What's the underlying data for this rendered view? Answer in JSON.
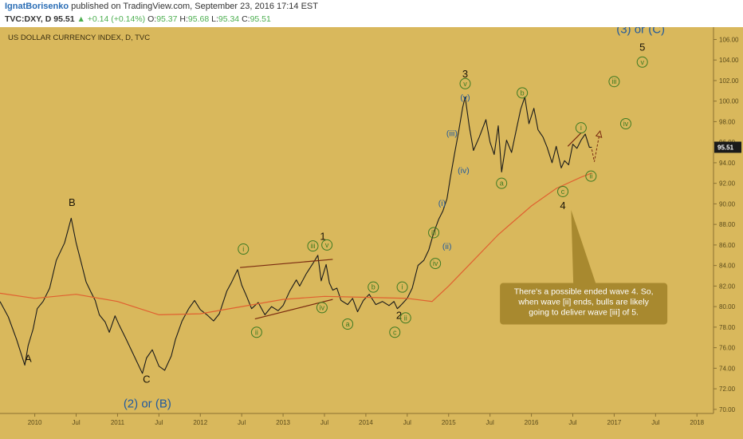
{
  "header": {
    "author": "IgnatBorisenko",
    "published": "published on TradingView.com, September 23, 2016 17:14 EST",
    "symbol": "TVC:DXY, D",
    "price": "95.51",
    "change": "+0.14 (+0.14%)",
    "o_label": "O:",
    "o_value": "95.37",
    "h_label": "H:",
    "h_value": "95.68",
    "l_label": "L:",
    "l_value": "95.34",
    "c_label": "C:",
    "c_value": "95.51"
  },
  "colors": {
    "background": "#d9b85c",
    "price_line": "#1a1a1a",
    "moving_average": "#e06030",
    "wave_green": "#3d7a22",
    "wave_blue": "#215a9e",
    "callout_bg": "#a8892f",
    "last_price_tag": "#1a1a1a"
  },
  "chart_data": {
    "type": "line",
    "title": "US DOLLAR CURRENCY INDEX, D, TVC",
    "y_ticks": [
      "70.00",
      "72.00",
      "74.00",
      "76.00",
      "78.00",
      "80.00",
      "82.00",
      "84.00",
      "86.00",
      "88.00",
      "90.00",
      "92.00",
      "94.00",
      "96.00",
      "98.00",
      "100.00",
      "102.00",
      "104.00",
      "106.00"
    ],
    "ylim": [
      69.6,
      107.2
    ],
    "x_ticks": [
      "2010",
      "Jul",
      "2011",
      "Jul",
      "2012",
      "Jul",
      "2013",
      "Jul",
      "2014",
      "Jul",
      "2015",
      "Jul",
      "2016",
      "Jul",
      "2017",
      "Jul",
      "2018"
    ],
    "x_tick_dates": [
      2010.0,
      2010.5,
      2011.0,
      2011.5,
      2012.0,
      2012.5,
      2013.0,
      2013.5,
      2014.0,
      2014.5,
      2015.0,
      2015.5,
      2016.0,
      2016.5,
      2017.0,
      2017.5,
      2018.0
    ],
    "xlim": [
      2009.58,
      2018.2
    ],
    "last_price": "95.51",
    "series": [
      {
        "kind": "price",
        "x": [
          2009.58,
          2009.68,
          2009.78,
          2009.88,
          2009.92,
          2009.98,
          2010.03,
          2010.1,
          2010.18,
          2010.26,
          2010.36,
          2010.44,
          2010.5,
          2010.56,
          2010.62,
          2010.68,
          2010.73,
          2010.78,
          2010.85,
          2010.9,
          2010.97,
          2011.02,
          2011.1,
          2011.2,
          2011.3,
          2011.35,
          2011.42,
          2011.5,
          2011.57,
          2011.65,
          2011.7,
          2011.78,
          2011.86,
          2011.93,
          2012.0,
          2012.08,
          2012.16,
          2012.23,
          2012.32,
          2012.38,
          2012.45,
          2012.5,
          2012.56,
          2012.62,
          2012.7,
          2012.78,
          2012.86,
          2012.94,
          2013.0,
          2013.08,
          2013.16,
          2013.2,
          2013.28,
          2013.36,
          2013.42,
          2013.46,
          2013.52,
          2013.56,
          2013.6,
          2013.65,
          2013.7,
          2013.78,
          2013.84,
          2013.9,
          2013.97,
          2014.04,
          2014.12,
          2014.2,
          2014.28,
          2014.34,
          2014.38,
          2014.42,
          2014.5,
          2014.56,
          2014.63,
          2014.7,
          2014.76,
          2014.82,
          2014.88,
          2014.93,
          2014.98,
          2015.02,
          2015.07,
          2015.12,
          2015.17,
          2015.2,
          2015.25,
          2015.3,
          2015.37,
          2015.45,
          2015.5,
          2015.55,
          2015.6,
          2015.64,
          2015.7,
          2015.76,
          2015.82,
          2015.87,
          2015.92,
          2015.97,
          2016.03,
          2016.08,
          2016.14,
          2016.19,
          2016.25,
          2016.3,
          2016.36,
          2016.4,
          2016.45,
          2016.5,
          2016.55,
          2016.6,
          2016.65,
          2016.7,
          2016.73
        ],
        "y": [
          80.5,
          79.0,
          76.8,
          74.3,
          76.2,
          77.8,
          79.8,
          80.5,
          81.8,
          84.5,
          86.2,
          88.6,
          86.2,
          84.3,
          82.4,
          81.4,
          80.6,
          79.2,
          78.5,
          77.5,
          79.1,
          78.2,
          76.9,
          75.2,
          73.5,
          75.0,
          75.8,
          74.2,
          73.8,
          75.2,
          76.8,
          78.6,
          79.8,
          80.6,
          79.7,
          79.2,
          78.6,
          79.3,
          81.5,
          82.4,
          83.6,
          82.1,
          81.0,
          79.8,
          80.4,
          79.2,
          80.0,
          79.6,
          80.1,
          81.5,
          82.6,
          82.0,
          83.2,
          84.2,
          85.0,
          82.5,
          84.1,
          82.3,
          81.6,
          81.8,
          80.6,
          80.2,
          80.8,
          79.5,
          80.6,
          81.2,
          80.2,
          80.5,
          80.1,
          80.5,
          79.8,
          80.1,
          80.8,
          81.8,
          84.0,
          84.5,
          85.5,
          87.2,
          88.5,
          89.3,
          90.5,
          92.5,
          94.8,
          97.0,
          99.4,
          100.4,
          97.5,
          95.2,
          96.5,
          98.2,
          96.0,
          94.8,
          97.6,
          93.1,
          96.2,
          95.0,
          97.3,
          99.2,
          100.4,
          97.8,
          99.3,
          97.2,
          96.5,
          95.5,
          94.0,
          95.6,
          93.5,
          94.2,
          93.8,
          95.8,
          95.4,
          96.2,
          96.8,
          95.5,
          95.51
        ]
      },
      {
        "kind": "moving-average",
        "x": [
          2009.58,
          2010.0,
          2010.5,
          2011.0,
          2011.5,
          2012.0,
          2012.5,
          2013.0,
          2013.5,
          2014.0,
          2014.5,
          2014.8,
          2015.0,
          2015.3,
          2015.6,
          2016.0,
          2016.3,
          2016.6,
          2016.73
        ],
        "y": [
          81.3,
          80.8,
          81.2,
          80.5,
          79.2,
          79.3,
          80.0,
          80.7,
          81.0,
          80.9,
          80.8,
          80.5,
          82.0,
          84.5,
          87.0,
          89.8,
          91.5,
          92.6,
          93.0
        ]
      }
    ],
    "wave_labels": {
      "black": [
        {
          "text": "B",
          "x": 2010.45,
          "y": 89.8,
          "size": 13
        },
        {
          "text": "A",
          "x": 2009.92,
          "y": 74.6,
          "size": 13
        },
        {
          "text": "C",
          "x": 2011.35,
          "y": 72.6,
          "size": 13
        },
        {
          "text": "1",
          "x": 2013.48,
          "y": 86.5,
          "size": 13
        },
        {
          "text": "2",
          "x": 2014.4,
          "y": 78.8,
          "size": 13
        },
        {
          "text": "3",
          "x": 2015.2,
          "y": 102.3,
          "size": 13
        },
        {
          "text": "4",
          "x": 2016.38,
          "y": 89.5,
          "size": 13
        },
        {
          "text": "5",
          "x": 2017.34,
          "y": 104.9,
          "size": 13
        }
      ],
      "blue_text": [
        {
          "text": "(3) or (C)",
          "x": 2017.32,
          "y": 106.6,
          "size": 15
        },
        {
          "text": "(2) or (B)",
          "x": 2011.36,
          "y": 70.2,
          "size": 15
        }
      ],
      "blue": [
        {
          "text": "(v)",
          "x": 2015.2,
          "y": 100.1
        },
        {
          "text": "(iii)",
          "x": 2015.04,
          "y": 96.6
        },
        {
          "text": "(iv)",
          "x": 2015.18,
          "y": 93.0
        },
        {
          "text": "(i)",
          "x": 2014.92,
          "y": 89.8
        },
        {
          "text": "(ii)",
          "x": 2014.98,
          "y": 85.6
        }
      ],
      "green": [
        {
          "text": "i",
          "x": 2012.52,
          "y": 85.6
        },
        {
          "text": "ii",
          "x": 2012.68,
          "y": 77.5
        },
        {
          "text": "iii",
          "x": 2013.36,
          "y": 85.9
        },
        {
          "text": "iv",
          "x": 2013.47,
          "y": 79.9
        },
        {
          "text": "v",
          "x": 2013.53,
          "y": 86.0
        },
        {
          "text": "a",
          "x": 2013.78,
          "y": 78.3
        },
        {
          "text": "b",
          "x": 2014.09,
          "y": 81.9
        },
        {
          "text": "c",
          "x": 2014.35,
          "y": 77.5
        },
        {
          "text": "i",
          "x": 2014.44,
          "y": 81.9
        },
        {
          "text": "ii",
          "x": 2014.48,
          "y": 78.9
        },
        {
          "text": "iii",
          "x": 2014.82,
          "y": 87.2
        },
        {
          "text": "iv",
          "x": 2014.84,
          "y": 84.2
        },
        {
          "text": "v",
          "x": 2015.2,
          "y": 101.7
        },
        {
          "text": "a",
          "x": 2015.64,
          "y": 92.0
        },
        {
          "text": "b",
          "x": 2015.89,
          "y": 100.8
        },
        {
          "text": "c",
          "x": 2016.38,
          "y": 91.2
        },
        {
          "text": "i",
          "x": 2016.6,
          "y": 97.4
        },
        {
          "text": "ii",
          "x": 2016.72,
          "y": 92.7
        },
        {
          "text": "iii",
          "x": 2017.0,
          "y": 101.9
        },
        {
          "text": "iv",
          "x": 2017.14,
          "y": 97.8
        },
        {
          "text": "v",
          "x": 2017.34,
          "y": 103.8
        }
      ]
    },
    "annotation": {
      "lines": [
        "There's a possible ended wave 4. So,",
        "when wave [ii] ends, bulls are likely",
        "going to deliver wave [iii] of 5."
      ]
    }
  }
}
